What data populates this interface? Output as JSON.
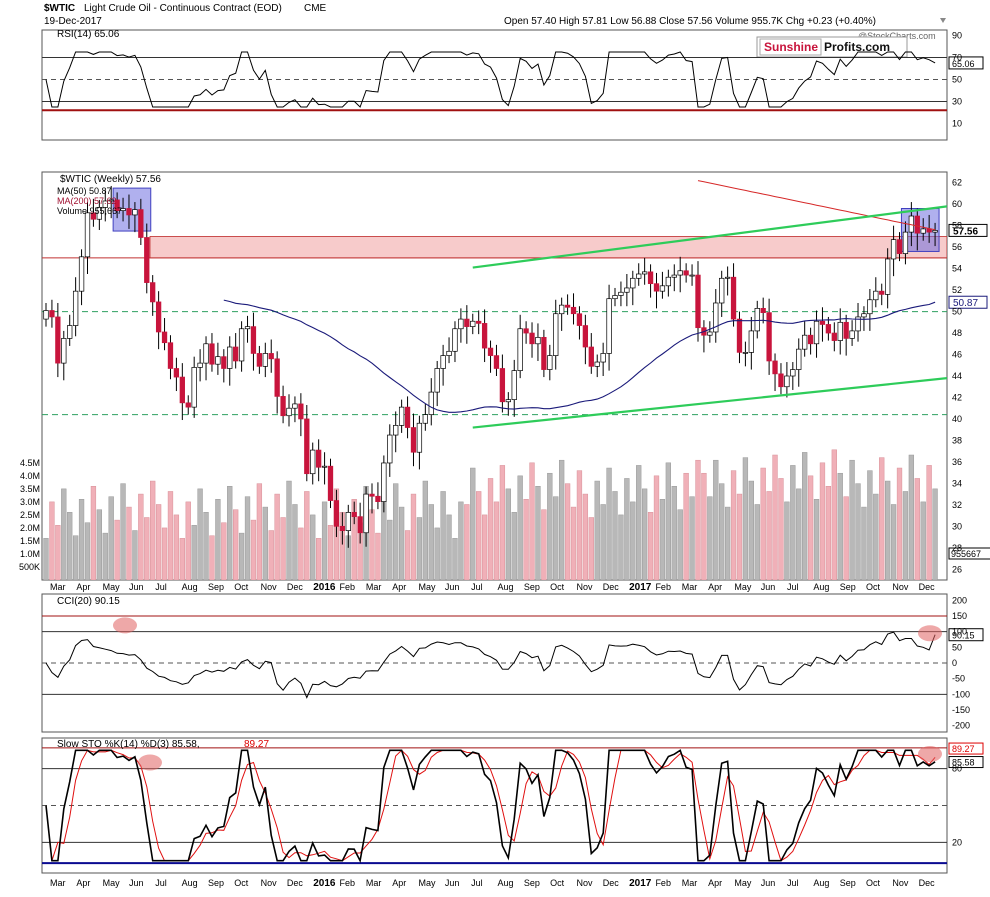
{
  "header": {
    "symbol": "$WTIC",
    "name": "Light Crude Oil - Continuous Contract (EOD)",
    "exchange": "CME",
    "date": "19-Dec-2017",
    "ohlc": "Open 57.40  High 57.81  Low 56.88  Close 57.56  Volume 955.7K  Chg +0.23 (+0.40%)",
    "watermark": "@StockCharts.com",
    "logo_left": "Sunshine",
    "logo_right": "Profits.com"
  },
  "colors": {
    "up": "#ffffff",
    "down": "#c8143c",
    "ma50": "#1a1a7a",
    "ma200": "#d62828",
    "channel": "#2ecc5a",
    "zone": "#f0a0a0",
    "highlight": "#6f6fe0",
    "vol_up": "#b8b8b8",
    "vol_down": "#f0b0b8"
  },
  "rsi": {
    "label": "RSI(14) 65.06",
    "value_tag": "65.06",
    "ticks": [
      "90",
      "70",
      "50",
      "30",
      "10"
    ]
  },
  "price": {
    "legend_main": "$WTIC (Weekly) 57.56",
    "legend_ma50": "MA(50) 50.87",
    "legend_ma200": "MA(200) 57.62",
    "legend_vol": "Volume 955,667",
    "tag_close": "57.56",
    "tag_ma50": "50.87",
    "ticks": [
      "62",
      "60",
      "58",
      "56",
      "54",
      "52",
      "50",
      "48",
      "46",
      "44",
      "42",
      "40",
      "38",
      "36",
      "34",
      "32",
      "30",
      "28",
      "26"
    ],
    "vol_ticks": [
      "4.5M",
      "4.0M",
      "3.5M",
      "3.0M",
      "2.5M",
      "2.0M",
      "1.5M",
      "1.0M",
      "500K"
    ],
    "vol_tag": "955667"
  },
  "cci": {
    "label": "CCI(20) 90.15",
    "value_tag": "90.15",
    "ticks": [
      "200",
      "150",
      "100",
      "50",
      "0",
      "-50",
      "-100",
      "-150",
      "-200"
    ]
  },
  "sto": {
    "label": "Slow STO %K(14) %D(3) 85.58,",
    "label_d": "89.27",
    "tag_k": "85.58",
    "tag_d": "89.27",
    "ticks": [
      "80",
      "20"
    ]
  },
  "months": [
    "Mar",
    "Apr",
    "May",
    "Jun",
    "Jul",
    "Aug",
    "Sep",
    "Oct",
    "Nov",
    "Dec",
    "2016",
    "Feb",
    "Mar",
    "Apr",
    "May",
    "Jun",
    "Jul",
    "Aug",
    "Sep",
    "Oct",
    "Nov",
    "Dec",
    "2017",
    "Feb",
    "Mar",
    "Apr",
    "May",
    "Jun",
    "Jul",
    "Aug",
    "Sep",
    "Oct",
    "Nov",
    "Dec"
  ],
  "chart_data": {
    "type": "candlestick",
    "title": "$WTIC Light Crude Oil - Continuous Contract (EOD) CME",
    "interval": "Weekly",
    "price_range": [
      25,
      63
    ],
    "close_series": [
      50.1,
      49.5,
      45.2,
      47.5,
      48.7,
      51.9,
      55.1,
      59.2,
      58.6,
      59.7,
      60.3,
      60.4,
      59.4,
      59.6,
      59.0,
      59.5,
      56.9,
      52.7,
      50.9,
      48.1,
      47.1,
      44.7,
      43.9,
      41.5,
      41.1,
      44.8,
      45.2,
      47.0,
      45.1,
      45.8,
      44.7,
      46.7,
      45.4,
      48.4,
      48.6,
      46.1,
      44.9,
      46.1,
      45.6,
      42.1,
      40.3,
      41.0,
      41.4,
      40.0,
      34.9,
      37.1,
      35.5,
      35.6,
      32.4,
      30.0,
      29.6,
      31.3,
      30.9,
      29.4,
      33.0,
      32.8,
      32.3,
      35.9,
      38.5,
      39.4,
      41.1,
      39.2,
      36.9,
      39.6,
      40.4,
      42.5,
      44.7,
      45.9,
      46.3,
      48.4,
      49.3,
      48.6,
      49.1,
      48.9,
      46.6,
      45.9,
      44.7,
      41.6,
      41.8,
      44.5,
      48.4,
      48.0,
      47.0,
      47.6,
      44.6,
      45.9,
      49.8,
      50.6,
      50.4,
      49.8,
      48.7,
      46.7,
      44.9,
      45.3,
      46.1,
      51.2,
      51.5,
      51.8,
      52.2,
      53.1,
      53.5,
      53.7,
      52.6,
      51.9,
      52.4,
      53.2,
      53.4,
      53.8,
      53.4,
      53.4,
      48.5,
      47.8,
      48.1,
      50.8,
      53.1,
      53.2,
      49.3,
      46.2,
      46.2,
      48.2,
      50.3,
      49.9,
      45.4,
      44.2,
      43.0,
      44.0,
      44.6,
      46.5,
      47.8,
      47.0,
      49.1,
      48.8,
      48.0,
      47.3,
      49.0,
      47.5,
      48.2,
      49.5,
      49.8,
      51.1,
      51.9,
      51.6,
      54.9,
      56.7,
      55.4,
      57.4,
      58.9,
      57.3,
      57.7,
      57.4,
      57.56
    ],
    "ma50_last": 50.87,
    "ma200_last": 57.62,
    "volume_range": [
      0,
      4.8
    ],
    "rsi": {
      "last": 65.06,
      "levels": [
        70,
        50,
        30
      ]
    },
    "cci": {
      "last": 90.15,
      "levels": [
        100,
        0,
        -100
      ]
    },
    "slow_sto": {
      "k_last": 85.58,
      "d_last": 89.27,
      "levels": [
        80,
        20
      ]
    },
    "annotations": [
      "rising green channel (support/resistance)",
      "red resistance zone 55-57",
      "blue consolidation boxes",
      "red circles on indicator sell signals"
    ]
  }
}
